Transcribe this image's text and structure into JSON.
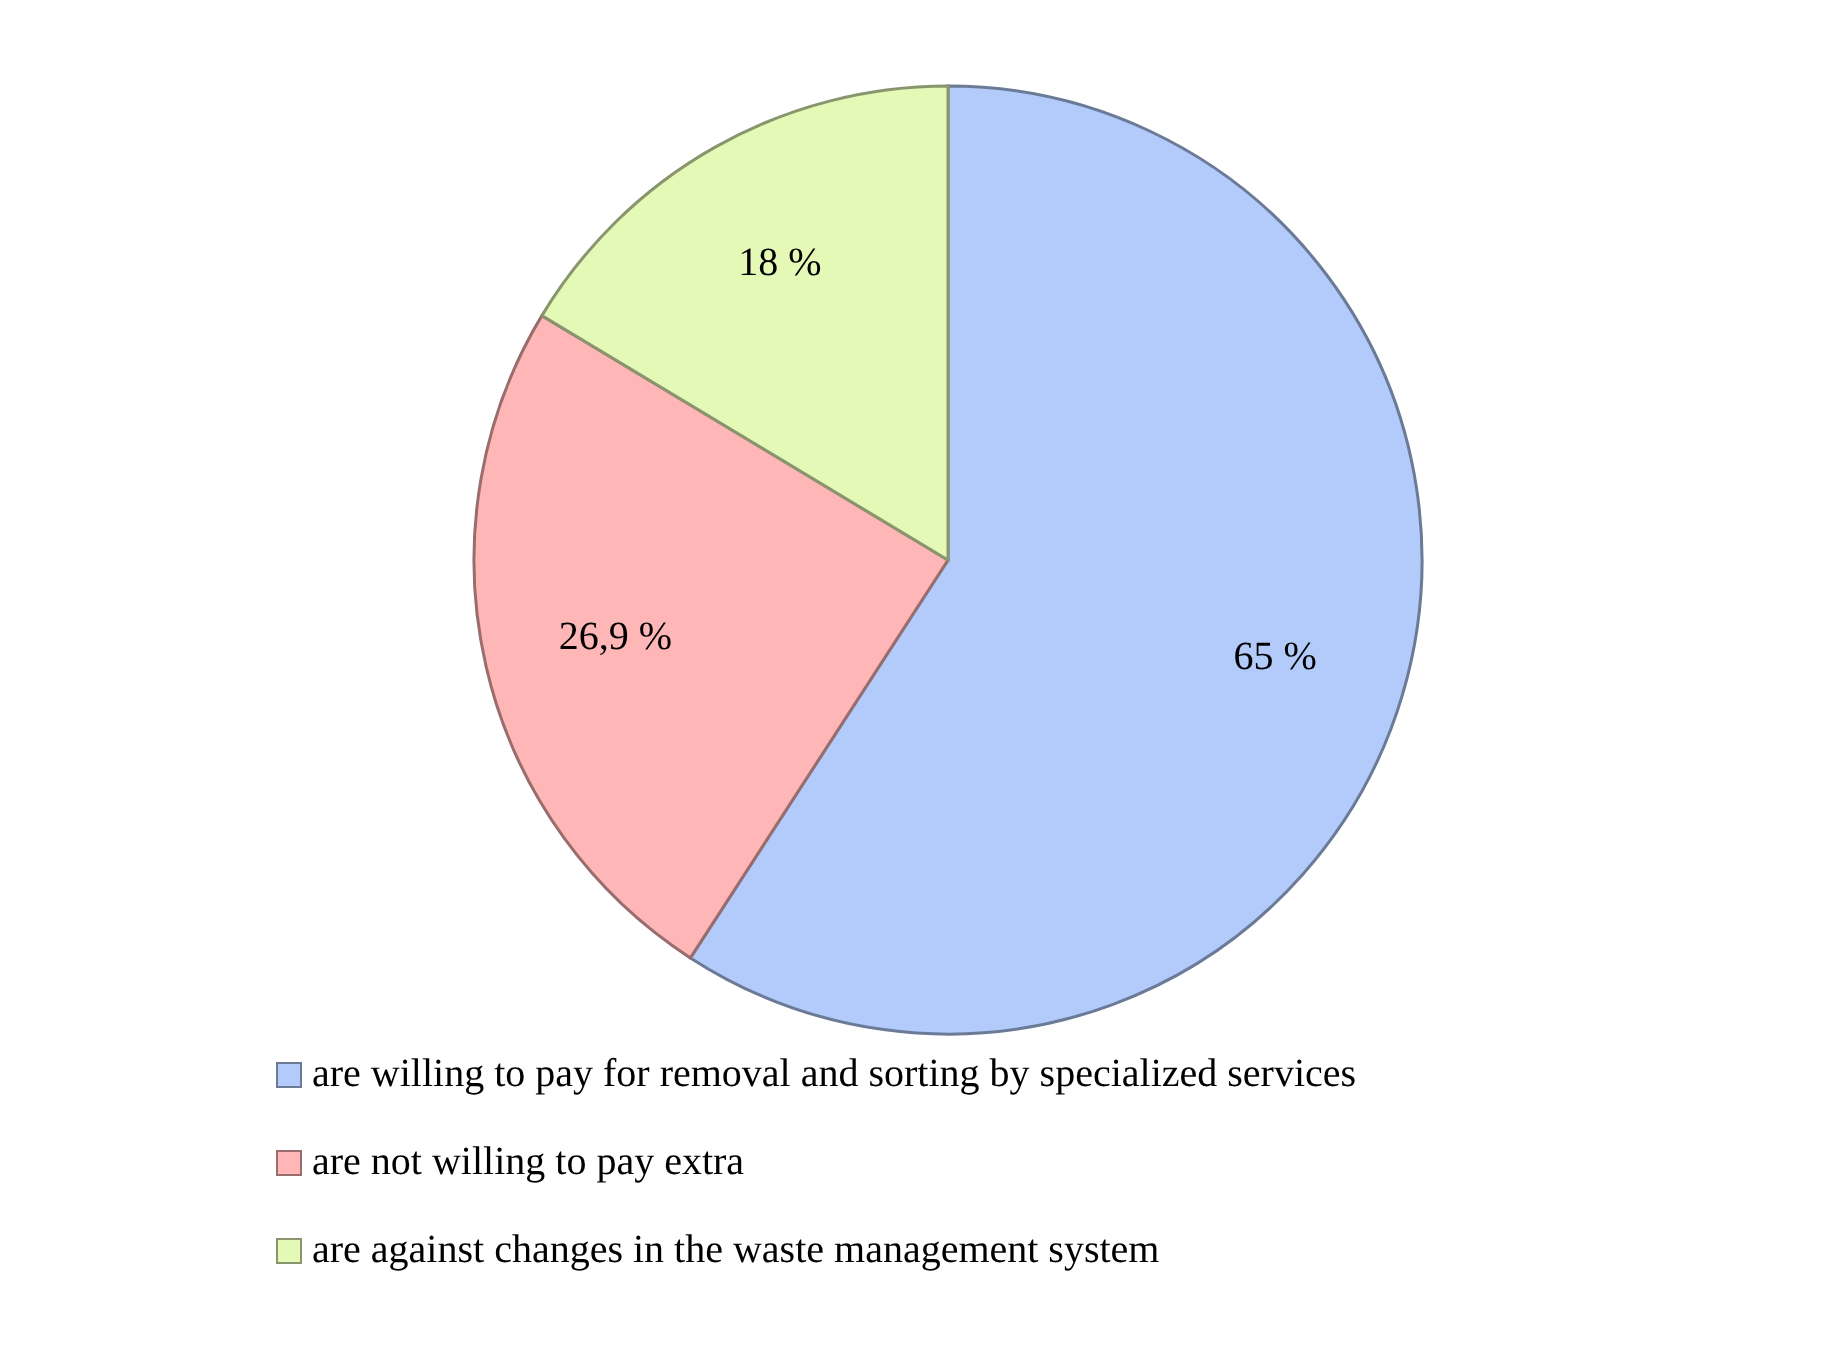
{
  "chart_data": {
    "type": "pie",
    "categories": [
      "are willing to pay for removal and sorting by specialized services",
      "are not willing to pay extra",
      "are against changes in the waste management system"
    ],
    "values": [
      65,
      26.9,
      18
    ],
    "value_labels": [
      "65 %",
      "26,9 %",
      "18 %"
    ],
    "colors": [
      "#b3cbfa",
      "#ffb6b6",
      "#e4f9b6"
    ],
    "legend": "bottom"
  }
}
